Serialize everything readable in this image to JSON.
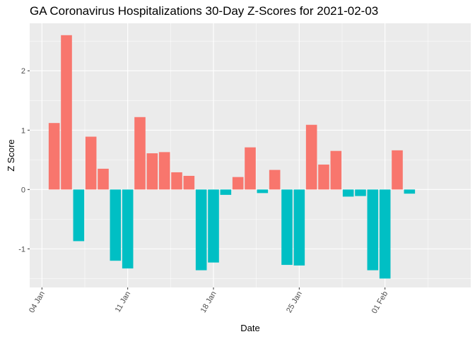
{
  "chart_data": {
    "type": "bar",
    "title": "GA Coronavirus Hospitalizations 30-Day Z-Scores for 2021-02-03",
    "xlabel": "Date",
    "ylabel": "Z Score",
    "x_ticks": [
      {
        "date": "2021-01-04",
        "label": "04 Jan"
      },
      {
        "date": "2021-01-11",
        "label": "11 Jan"
      },
      {
        "date": "2021-01-18",
        "label": "18 Jan"
      },
      {
        "date": "2021-01-25",
        "label": "25 Jan"
      },
      {
        "date": "2021-02-01",
        "label": "01 Feb"
      }
    ],
    "y_ticks": [
      {
        "value": -1,
        "label": "-1"
      },
      {
        "value": 0,
        "label": "0"
      },
      {
        "value": 1,
        "label": "1"
      },
      {
        "value": 2,
        "label": "2"
      }
    ],
    "xlim": [
      "2021-01-03",
      "2021-02-08"
    ],
    "ylim": [
      -1.65,
      2.8
    ],
    "grid": true,
    "legend": "none",
    "colors": {
      "positive": "#F8766D",
      "negative": "#00BFC4",
      "panel": "#EBEBEB",
      "grid": "#FFFFFF"
    },
    "dates": [
      "2021-01-05",
      "2021-01-06",
      "2021-01-07",
      "2021-01-08",
      "2021-01-09",
      "2021-01-10",
      "2021-01-11",
      "2021-01-12",
      "2021-01-13",
      "2021-01-14",
      "2021-01-15",
      "2021-01-16",
      "2021-01-17",
      "2021-01-18",
      "2021-01-19",
      "2021-01-20",
      "2021-01-21",
      "2021-01-22",
      "2021-01-23",
      "2021-01-24",
      "2021-01-25",
      "2021-01-26",
      "2021-01-27",
      "2021-01-28",
      "2021-01-29",
      "2021-01-30",
      "2021-01-31",
      "2021-02-01",
      "2021-02-02",
      "2021-02-03"
    ],
    "values": [
      1.12,
      2.6,
      -0.87,
      0.89,
      0.35,
      -1.2,
      -1.33,
      1.22,
      0.61,
      0.63,
      0.29,
      0.23,
      -1.36,
      -1.23,
      -0.09,
      0.21,
      0.71,
      -0.06,
      0.33,
      -1.27,
      -1.28,
      1.09,
      0.42,
      0.65,
      -0.12,
      -0.11,
      -1.36,
      -1.5,
      0.66,
      -0.07
    ]
  }
}
